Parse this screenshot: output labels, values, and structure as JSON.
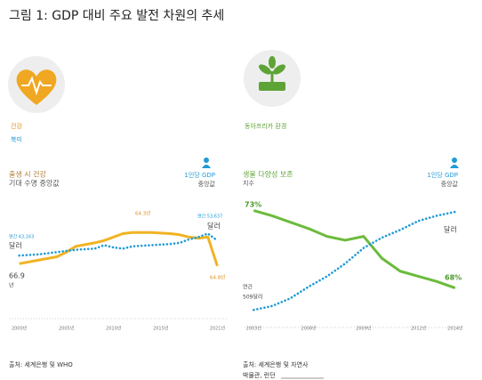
{
  "title": "그림 1: GDP 대비 주요 발전 차원의 추세",
  "panels": [
    {
      "category": "건강",
      "region": "북미",
      "source": "출처: 세계은행 및 WHO"
    },
    {
      "category": "동아프리카 환경",
      "source": "출처: 세계은행 및 자연사",
      "source2": "박물관, 런던"
    }
  ],
  "chart_data": [
    {
      "type": "line",
      "left_title": "출생 시 건강",
      "left_subtitle": "기대 수명 중앙값",
      "right_title": "1인당 GDP",
      "right_subtitle": "중앙값",
      "x": [
        2000,
        2002,
        2004,
        2005,
        2006,
        2008,
        2009,
        2010,
        2011,
        2012,
        2014,
        2016,
        2017,
        2018,
        2019,
        2020,
        2021
      ],
      "xlim": [
        1999,
        2022
      ],
      "xticks": [
        {
          "value": 2000,
          "label": "2000년"
        },
        {
          "value": 2005,
          "label": "2005년"
        },
        {
          "value": 2010,
          "label": "2010년"
        },
        {
          "value": 2015,
          "label": "2015년"
        },
        {
          "value": 2021,
          "label": "2021년"
        }
      ],
      "ylim": [
        0,
        100
      ],
      "series": [
        {
          "color": "#f0b323",
          "style": "solid",
          "values": [
            49,
            52,
            55,
            59,
            64,
            67,
            69,
            72,
            75,
            76,
            76,
            75,
            74,
            72,
            71,
            72,
            47
          ]
        },
        {
          "color": "#1f9ad6",
          "style": "dotted",
          "values": [
            56,
            57,
            59,
            60,
            61,
            62,
            65,
            63,
            62,
            64,
            65,
            66,
            67,
            70,
            72,
            75,
            69
          ]
        }
      ],
      "annotations": [
        "64.3년",
        "연간 53,637",
        "달러",
        "연간 43,163",
        "달러",
        "66.9",
        "년",
        "64.8년"
      ]
    },
    {
      "type": "line",
      "left_title": "생물 다양성 보존",
      "left_subtitle": "지수",
      "right_title": "1인당 GDP",
      "right_subtitle": "중앙값",
      "x": [
        2003,
        2004,
        2005,
        2006,
        2007,
        2008,
        2009,
        2010,
        2011,
        2012,
        2013,
        2014
      ],
      "xlim": [
        2002.5,
        2014.3
      ],
      "xticks": [
        {
          "value": 2003,
          "label": "2003년"
        },
        {
          "value": 2006,
          "label": "2006년"
        },
        {
          "value": 2009,
          "label": "2009년"
        },
        {
          "value": 2012,
          "label": "2012년"
        },
        {
          "value": 2014,
          "label": "2014년"
        }
      ],
      "ylim": [
        0,
        100
      ],
      "series": [
        {
          "color": "#6cbb3c",
          "style": "solid",
          "values": [
            92,
            88,
            83,
            78,
            72,
            69,
            72,
            55,
            45,
            41,
            37,
            32
          ]
        },
        {
          "color": "#1f9ad6",
          "style": "dotted",
          "values": [
            15,
            18,
            24,
            33,
            41,
            51,
            63,
            71,
            77,
            84,
            88,
            91
          ]
        }
      ],
      "annotations": [
        "73%",
        "달러",
        "68%",
        "연간",
        "509달러"
      ]
    }
  ]
}
